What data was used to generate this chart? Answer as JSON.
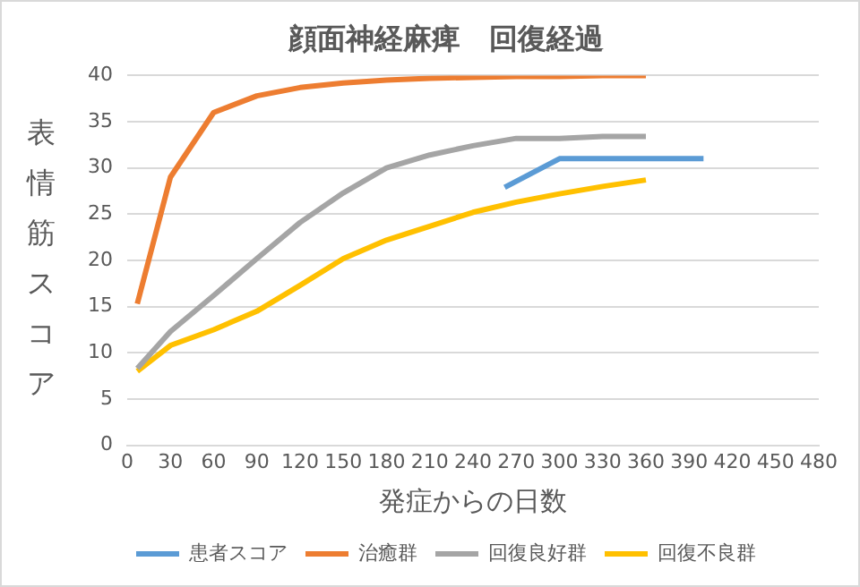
{
  "chart_data": {
    "type": "line",
    "title": "顔面神経麻痺　回復経過",
    "xlabel": "発症からの日数",
    "ylabel": "表情筋スコア",
    "xlim": [
      0,
      480
    ],
    "xticks": [
      0,
      30,
      60,
      90,
      120,
      150,
      180,
      210,
      240,
      270,
      300,
      330,
      360,
      390,
      420,
      450,
      480
    ],
    "ylim": [
      0,
      40
    ],
    "yticks": [
      0,
      5,
      10,
      15,
      20,
      25,
      30,
      35,
      40
    ],
    "grid": "y",
    "legend": "bottom",
    "marker": "none",
    "line_style": "solid",
    "series": [
      {
        "name": "患者スコア",
        "color": "#5b9bd5",
        "x": [
          262,
          300,
          400
        ],
        "values": [
          27.9,
          31,
          31
        ]
      },
      {
        "name": "治癒群",
        "color": "#ed7d31",
        "x": [
          7,
          30,
          60,
          90,
          120,
          150,
          180,
          210,
          240,
          270,
          300,
          330,
          360
        ],
        "values": [
          15.3,
          29,
          36,
          37.8,
          38.7,
          39.2,
          39.5,
          39.7,
          39.8,
          39.9,
          39.9,
          40,
          40
        ]
      },
      {
        "name": "回復良好群",
        "color": "#a5a5a5",
        "x": [
          7,
          30,
          60,
          90,
          120,
          150,
          180,
          210,
          240,
          270,
          300,
          330,
          360
        ],
        "values": [
          8.3,
          12.3,
          16.2,
          20.2,
          24.1,
          27.3,
          30,
          31.4,
          32.4,
          33.2,
          33.2,
          33.4,
          33.4
        ]
      },
      {
        "name": "回復不良群",
        "color": "#ffc000",
        "x": [
          7,
          30,
          60,
          90,
          120,
          150,
          180,
          210,
          240,
          270,
          300,
          330,
          360
        ],
        "values": [
          8,
          10.8,
          12.5,
          14.5,
          17.3,
          20.2,
          22.2,
          23.7,
          25.2,
          26.3,
          27.2,
          28,
          28.7
        ]
      }
    ]
  }
}
